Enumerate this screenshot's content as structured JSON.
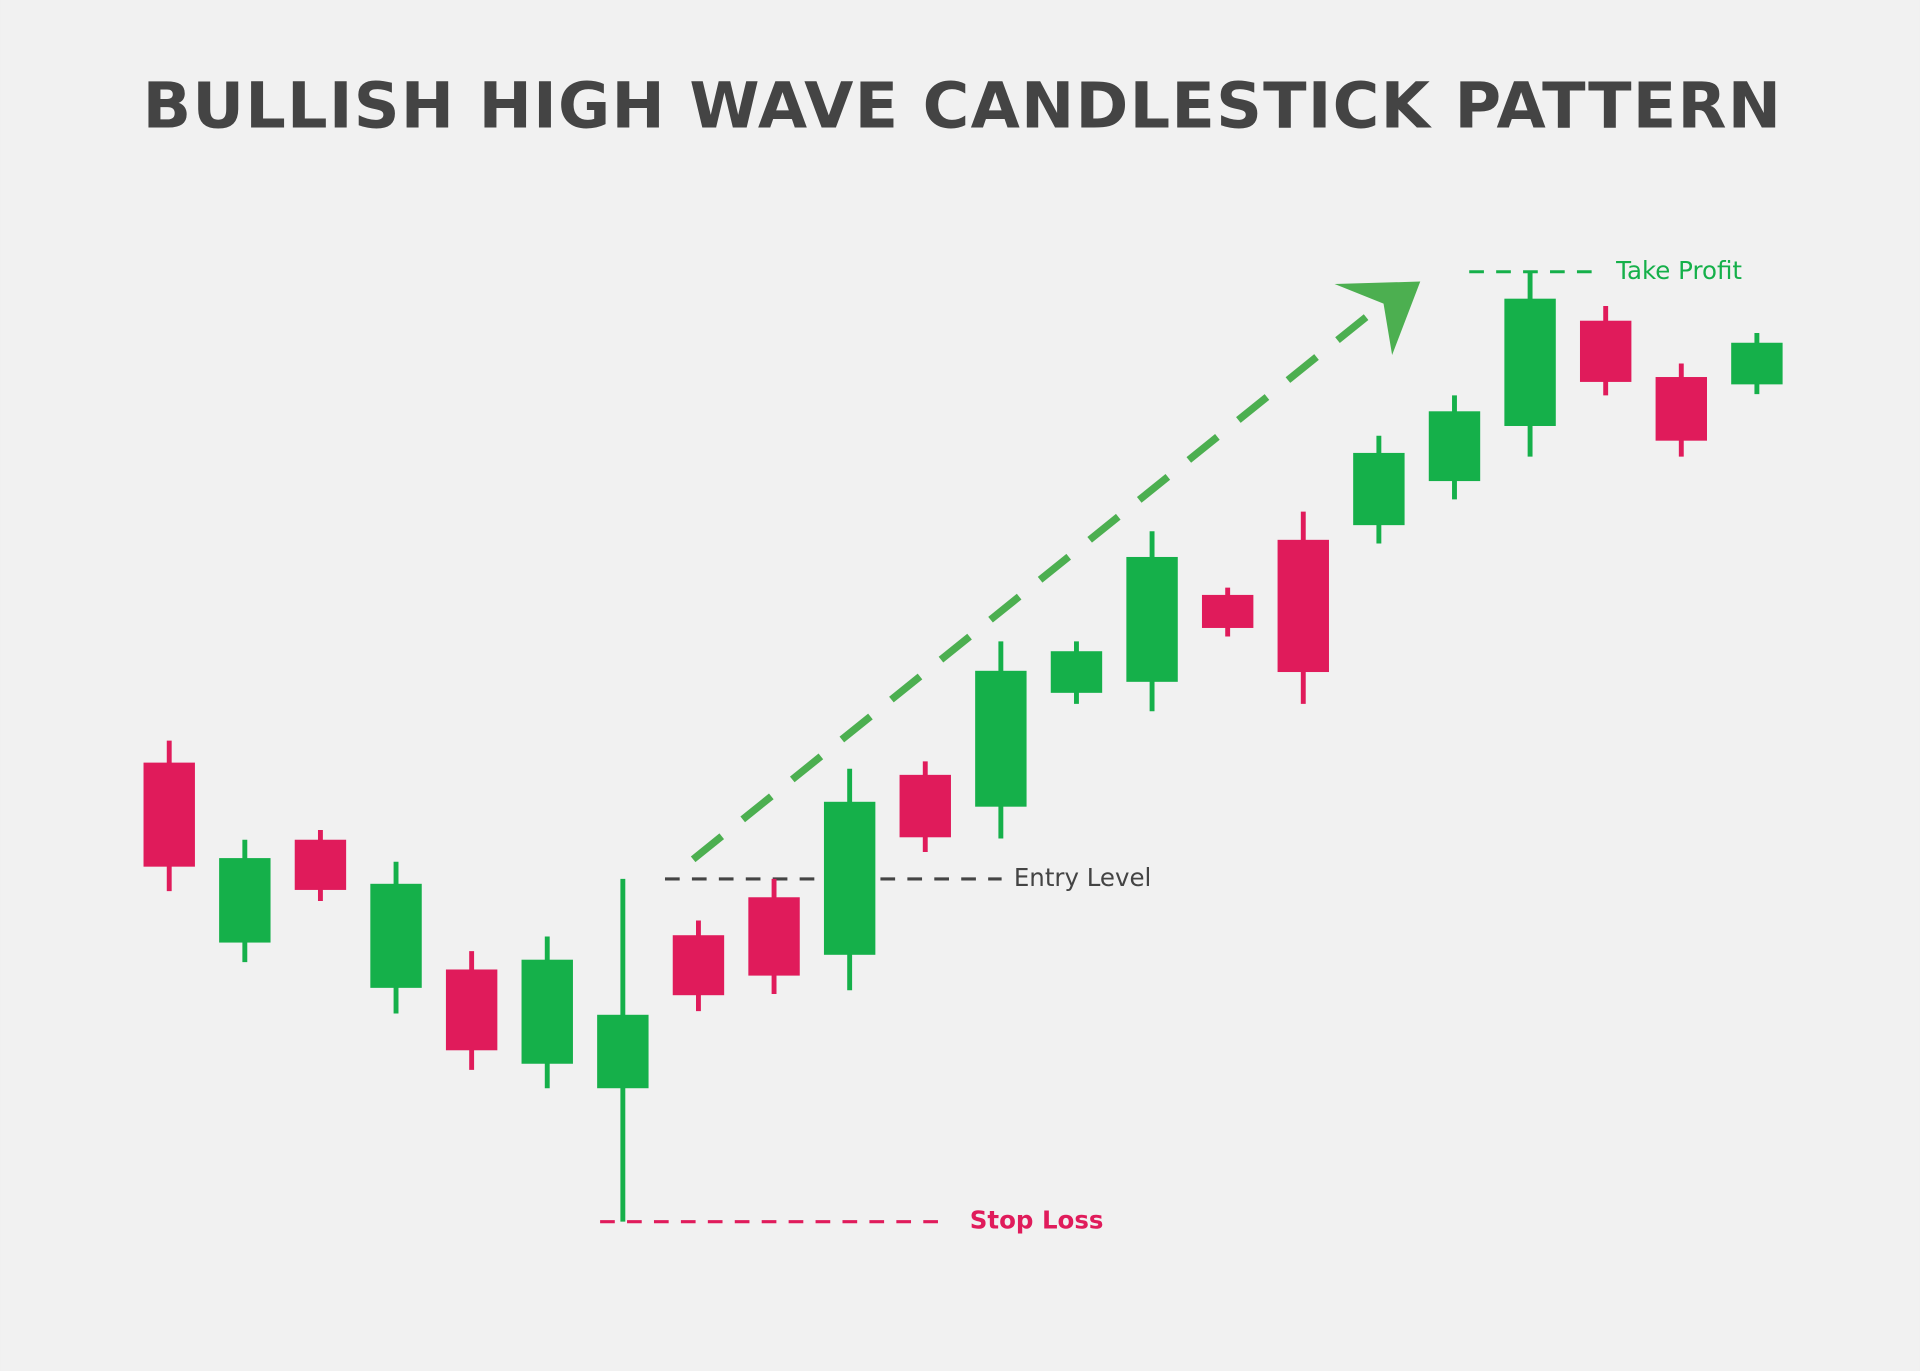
{
  "chart_data": {
    "type": "candlestick",
    "title": "BULLISH HIGH WAVE CANDLESTICK PATTERN",
    "open": [
      497,
      350,
      434,
      313,
      328,
      251,
      231,
      356,
      387,
      340,
      487,
      461,
      554,
      563,
      634,
      679,
      691,
      727,
      772,
      858,
      812,
      806
    ],
    "high": [
      515,
      434,
      442,
      416,
      343,
      355,
      402,
      368,
      402,
      492,
      498,
      596,
      596,
      686,
      640,
      702,
      764,
      797,
      898,
      870,
      823,
      848
    ],
    "low": [
      392,
      334,
      384,
      292,
      246,
      231,
      122,
      294,
      308,
      311,
      424,
      435,
      545,
      539,
      600,
      545,
      676,
      712,
      747,
      797,
      747,
      798
    ],
    "close": [
      412,
      419,
      393,
      398,
      262,
      336,
      291,
      307,
      323,
      465,
      436,
      572,
      588,
      665,
      607,
      571,
      750,
      784,
      876,
      808,
      760,
      840
    ],
    "up_color": "#15b04a",
    "down_color": "#e01b5b",
    "ylim": [
      0,
      1120
    ],
    "levels": [
      {
        "label": "Take Profit",
        "value": 898,
        "color": "#15b04a"
      },
      {
        "label": "Entry Level",
        "value": 402,
        "color": "#444444"
      },
      {
        "label": "Stop Loss",
        "value": 122,
        "color": "#e01b5b"
      }
    ]
  }
}
